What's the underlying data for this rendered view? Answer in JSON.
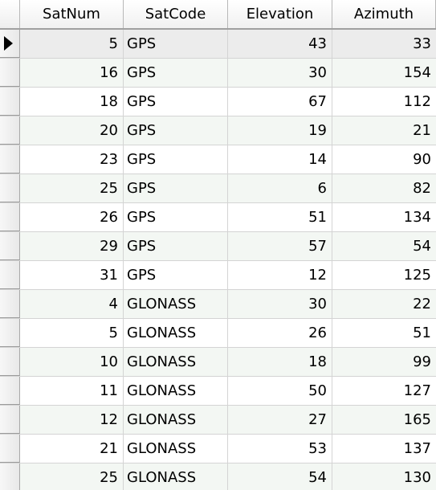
{
  "columns": {
    "satnum": "SatNum",
    "satcode": "SatCode",
    "elevation": "Elevation",
    "azimuth": "Azimuth"
  },
  "selected_row": 0,
  "rows": [
    {
      "satnum": "5",
      "satcode": "GPS",
      "elevation": "43",
      "azimuth": "33"
    },
    {
      "satnum": "16",
      "satcode": "GPS",
      "elevation": "30",
      "azimuth": "154"
    },
    {
      "satnum": "18",
      "satcode": "GPS",
      "elevation": "67",
      "azimuth": "112"
    },
    {
      "satnum": "20",
      "satcode": "GPS",
      "elevation": "19",
      "azimuth": "21"
    },
    {
      "satnum": "23",
      "satcode": "GPS",
      "elevation": "14",
      "azimuth": "90"
    },
    {
      "satnum": "25",
      "satcode": "GPS",
      "elevation": "6",
      "azimuth": "82"
    },
    {
      "satnum": "26",
      "satcode": "GPS",
      "elevation": "51",
      "azimuth": "134"
    },
    {
      "satnum": "29",
      "satcode": "GPS",
      "elevation": "57",
      "azimuth": "54"
    },
    {
      "satnum": "31",
      "satcode": "GPS",
      "elevation": "12",
      "azimuth": "125"
    },
    {
      "satnum": "4",
      "satcode": "GLONASS",
      "elevation": "30",
      "azimuth": "22"
    },
    {
      "satnum": "5",
      "satcode": "GLONASS",
      "elevation": "26",
      "azimuth": "51"
    },
    {
      "satnum": "10",
      "satcode": "GLONASS",
      "elevation": "18",
      "azimuth": "99"
    },
    {
      "satnum": "11",
      "satcode": "GLONASS",
      "elevation": "50",
      "azimuth": "127"
    },
    {
      "satnum": "12",
      "satcode": "GLONASS",
      "elevation": "27",
      "azimuth": "165"
    },
    {
      "satnum": "21",
      "satcode": "GLONASS",
      "elevation": "53",
      "azimuth": "137"
    },
    {
      "satnum": "25",
      "satcode": "GLONASS",
      "elevation": "54",
      "azimuth": "130"
    }
  ]
}
